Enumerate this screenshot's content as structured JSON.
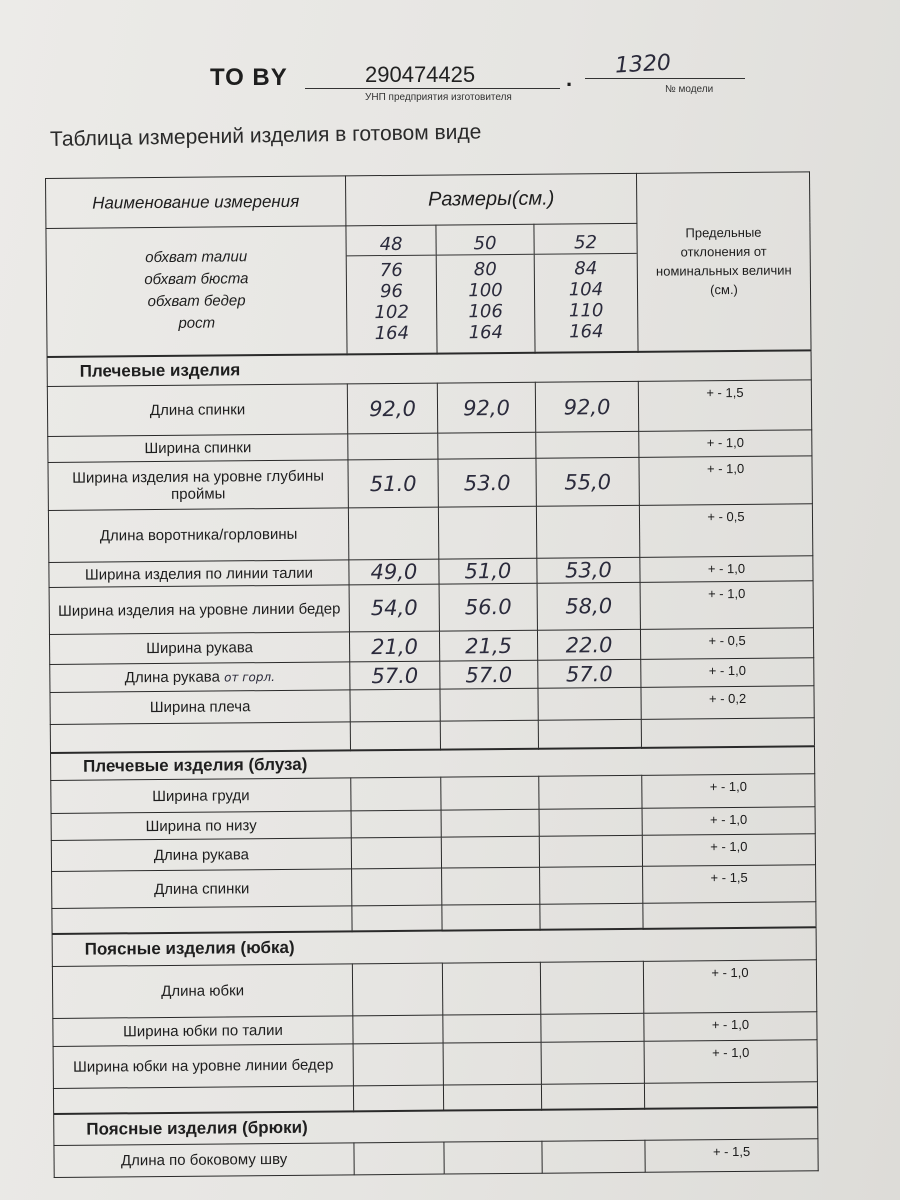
{
  "header": {
    "to_label": "ТО BY",
    "unp_value": "290474425",
    "unp_caption": "УНП предприятия изготовителя",
    "model_value": "1320",
    "model_caption": "№ модели"
  },
  "title": "Таблица измерений изделия в готовом виде",
  "table": {
    "col_name": "Наименование измерения",
    "col_sizes": "Размеры(см.)",
    "col_tolerance": "Предельные отклонения от номинальных величин (см.)",
    "sizes": [
      "48",
      "50",
      "52"
    ],
    "body_measures": {
      "labels": [
        "обхват талии",
        "обхват бюста",
        "обхват бедер",
        "рост"
      ],
      "values": [
        [
          "76",
          "96",
          "102",
          "164"
        ],
        [
          "80",
          "100",
          "106",
          "164"
        ],
        [
          "84",
          "104",
          "110",
          "164"
        ]
      ]
    },
    "sections": [
      {
        "title": "Плечевые изделия",
        "rows": [
          {
            "name": "Длина спинки",
            "values": [
              "92,0",
              "92,0",
              "92,0"
            ],
            "tol": "+ - 1,5"
          },
          {
            "name": "Ширина спинки",
            "values": [
              "",
              "",
              ""
            ],
            "tol": "+ - 1,0"
          },
          {
            "name": "Ширина изделия на уровне глубины проймы",
            "values": [
              "51.0",
              "53.0",
              "55,0"
            ],
            "tol": "+ - 1,0"
          },
          {
            "name": "Длина воротника/горловины",
            "values": [
              "",
              "",
              ""
            ],
            "tol": "+ - 0,5"
          },
          {
            "name": "Ширина изделия по линии талии",
            "values": [
              "49,0",
              "51,0",
              "53,0"
            ],
            "tol": "+ - 1,0"
          },
          {
            "name": "Ширина изделия на уровне линии бедер",
            "values": [
              "54,0",
              "56.0",
              "58,0"
            ],
            "tol": "+ - 1,0"
          },
          {
            "name": "Ширина рукава",
            "values": [
              "21,0",
              "21,5",
              "22.0"
            ],
            "tol": "+ - 0,5"
          },
          {
            "name": "Длина рукава",
            "note": "от горл.",
            "values": [
              "57.0",
              "57.0",
              "57.0"
            ],
            "tol": "+ - 1,0"
          },
          {
            "name": "Ширина плеча",
            "values": [
              "",
              "",
              ""
            ],
            "tol": "+ - 0,2"
          },
          {
            "name": "",
            "values": [
              "",
              "",
              ""
            ],
            "tol": ""
          }
        ]
      },
      {
        "title": "Плечевые изделия (блуза)",
        "rows": [
          {
            "name": "Ширина груди",
            "values": [
              "",
              "",
              ""
            ],
            "tol": "+ - 1,0"
          },
          {
            "name": "Ширина по низу",
            "values": [
              "",
              "",
              ""
            ],
            "tol": "+ - 1,0"
          },
          {
            "name": "Длина рукава",
            "values": [
              "",
              "",
              ""
            ],
            "tol": "+ - 1,0"
          },
          {
            "name": "Длина спинки",
            "values": [
              "",
              "",
              ""
            ],
            "tol": "+ - 1,5"
          },
          {
            "name": "",
            "values": [
              "",
              "",
              ""
            ],
            "tol": ""
          }
        ]
      },
      {
        "title": "Поясные изделия (юбка)",
        "rows": [
          {
            "name": "Длина юбки",
            "values": [
              "",
              "",
              ""
            ],
            "tol": "+ - 1,0"
          },
          {
            "name": "Ширина юбки по талии",
            "values": [
              "",
              "",
              ""
            ],
            "tol": "+ - 1,0"
          },
          {
            "name": "Ширина юбки на уровне линии бедер",
            "values": [
              "",
              "",
              ""
            ],
            "tol": "+ - 1,0"
          },
          {
            "name": "",
            "values": [
              "",
              "",
              ""
            ],
            "tol": ""
          }
        ]
      },
      {
        "title": "Поясные изделия (брюки)",
        "rows": [
          {
            "name": "Длина по боковому шву",
            "values": [
              "",
              "",
              ""
            ],
            "tol": "+ - 1,5"
          }
        ]
      }
    ]
  }
}
